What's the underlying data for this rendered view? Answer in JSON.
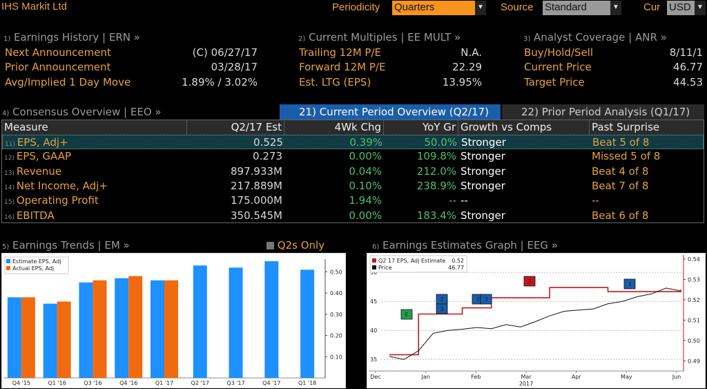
{
  "header": {
    "title": "IHS Markit Ltd",
    "periodicity_label": "Periodicity",
    "periodicity_value": "Quarters",
    "source_label": "Source",
    "source_value": "Standard",
    "cur_label": "Cur",
    "cur_value": "USD"
  },
  "earnings_history": {
    "num": "1)",
    "title": "Earnings History | ERN »",
    "rows": [
      {
        "label": "Next Announcement",
        "value": "(C)  06/27/17"
      },
      {
        "label": "Prior Announcement",
        "value": "03/28/17"
      },
      {
        "label": "Avg/Implied 1 Day Move",
        "value": "1.89% / 3.02%"
      }
    ]
  },
  "current_multiples": {
    "num": "2)",
    "title": "Current Multiples | EE MULT »",
    "rows": [
      {
        "label": "Trailing 12M P/E",
        "value": "N.A."
      },
      {
        "label": "Forward 12M P/E",
        "value": "22.29"
      },
      {
        "label": "Est. LTG (EPS)",
        "value": "13.95%"
      }
    ]
  },
  "analyst_coverage": {
    "num": "3)",
    "title": "Analyst Coverage | ANR »",
    "rows": [
      {
        "label": "Buy/Hold/Sell",
        "value": "8/11/1"
      },
      {
        "label": "Current Price",
        "value": "46.77"
      },
      {
        "label": "Target Price",
        "value": "44.53"
      }
    ]
  },
  "consensus": {
    "num": "4)",
    "title": "Consensus Overview | EEO »",
    "tab_current": "21) Current Period Overview (Q2/17)",
    "tab_prior": "22) Prior Period Analysis (Q1/17)",
    "columns": [
      "Measure",
      "Q2/17 Est",
      "4Wk Chg",
      "YoY Gr",
      "Growth vs Comps",
      "Past Surprise"
    ],
    "rows": [
      {
        "idx": "11)",
        "measure": "EPS, Adj+",
        "est": "0.525",
        "chg": "0.39%",
        "yoy": "50.0%",
        "comps": "Stronger",
        "surprise": "Beat 5 of 8"
      },
      {
        "idx": "12)",
        "measure": "EPS, GAAP",
        "est": "0.273",
        "chg": "0.00%",
        "yoy": "109.8%",
        "comps": "Stronger",
        "surprise": "Missed 5 of 8"
      },
      {
        "idx": "13)",
        "measure": "Revenue",
        "est": "897.933M",
        "chg": "0.04%",
        "yoy": "212.0%",
        "comps": "Stronger",
        "surprise": "Beat 4 of 8"
      },
      {
        "idx": "14)",
        "measure": "Net Income, Adj+",
        "est": "217.889M",
        "chg": "0.10%",
        "yoy": "238.9%",
        "comps": "Stronger",
        "surprise": "Beat 7 of 8"
      },
      {
        "idx": "15)",
        "measure": "Operating Profit",
        "est": "175.000M",
        "chg": "1.94%",
        "yoy": "--",
        "comps": "--",
        "surprise": "--"
      },
      {
        "idx": "16)",
        "measure": "EBITDA",
        "est": "350.545M",
        "chg": "0.00%",
        "yoy": "183.4%",
        "comps": "Stronger",
        "surprise": "Beat 6 of 8"
      }
    ]
  },
  "earnings_trends": {
    "num": "5)",
    "title": "Earnings Trends | EM »",
    "q2_toggle": "Q2s Only"
  },
  "earnings_graph": {
    "num": "6)",
    "title": "Earnings Estimates Graph | EEG »"
  },
  "colors": {
    "amber": "#e6a13a",
    "green": "#4cc26a",
    "blue_bar": "#1e90ff",
    "orange_bar": "#f26a0f",
    "red_line": "#c8141e",
    "tab_active": "#1a5da8"
  },
  "chart_data": [
    {
      "type": "bar",
      "categories": [
        "Q4 '15",
        "Q1 '16",
        "Q3 '16",
        "Q4 '16",
        "Q1 '17",
        "Q2 '17",
        "Q3 '17",
        "Q4 '17",
        "Q1 '18"
      ],
      "series": [
        {
          "name": "Estimate EPS, Adj",
          "color": "#1e90ff",
          "values": [
            0.38,
            0.35,
            0.45,
            0.47,
            0.46,
            0.53,
            0.52,
            0.55,
            0.51
          ]
        },
        {
          "name": "Actual EPS, Adj",
          "color": "#f26a0f",
          "values": [
            0.38,
            0.36,
            0.46,
            0.48,
            0.46,
            null,
            null,
            null,
            null
          ]
        }
      ],
      "ylim": [
        0.0,
        0.56
      ],
      "yticks": [
        "0.10",
        "0.20",
        "0.30",
        "0.40",
        "0.50"
      ],
      "legend": "top-left"
    },
    {
      "type": "line",
      "x_ticks": [
        "Dec",
        "Jan",
        "Feb",
        "Mar",
        "Apr",
        "May",
        "Jun"
      ],
      "x_year": "2017",
      "series": [
        {
          "name": "Q2 17 EPS, Adj Estimate",
          "legend_value": "0.52",
          "color": "#c8141e",
          "axis": "right",
          "values": [
            0.493,
            0.493,
            0.513,
            0.513,
            0.513,
            0.516,
            0.516,
            0.521,
            0.521,
            0.521,
            0.521,
            0.526,
            0.526,
            0.526,
            0.526,
            0.524,
            0.524,
            0.524,
            0.524,
            0.524,
            0.525
          ]
        },
        {
          "name": "Price",
          "legend_value": "46.77",
          "color": "#111111",
          "axis": "left",
          "values": [
            35.5,
            35.0,
            36.5,
            39.5,
            40.0,
            40.2,
            40.5,
            40.3,
            41.0,
            40.6,
            41.5,
            42.5,
            43.3,
            43.5,
            43.7,
            44.6,
            45.0,
            45.8,
            46.3,
            47.3,
            46.8
          ]
        }
      ],
      "ylim_left": [
        33,
        53
      ],
      "yticks_left": [
        "35",
        "40",
        "45",
        "50"
      ],
      "ylim_right": [
        0.485,
        0.542
      ],
      "yticks_right": [
        "0.49",
        "0.50",
        "0.51",
        "0.52",
        "0.53",
        "0.54"
      ],
      "markers": [
        "E",
        "2",
        "3",
        "3",
        "3",
        "3",
        "3"
      ],
      "legend": "top-left"
    }
  ]
}
